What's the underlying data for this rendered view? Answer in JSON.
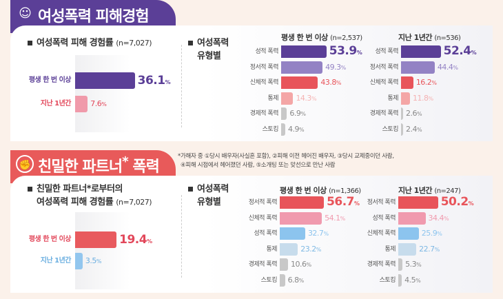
{
  "section1": {
    "title": "여성폭력 피해경험",
    "icon": "speech-bubbles-people-icon",
    "rate_title": "여성폭력 피해 경험률",
    "rate_n": "(n=7,027)",
    "type_title1": "여성폭력",
    "type_title2": "유형별"
  },
  "section2": {
    "title": "친밀한 파트너",
    "title_star": "*",
    "title_end": " 폭력",
    "icon": "raised-fist-icon",
    "rate_title1": "친밀한 파트너*로부터의",
    "rate_title2": "여성폭력 피해 경험률",
    "rate_n": "(n=7,027)",
    "type_title1": "여성폭력",
    "type_title2": "유형별",
    "note1": "*가해자 중 ①당시 배우자(사실혼 포함), ②피해 이전 헤어진 배우자, ③당시 교제중이던 사람,",
    "note2": "④피해 시점에서 헤어졌던 사람, ⑤소개팅 또는 맞선으로 만난 사람"
  },
  "chart_data": [
    {
      "type": "bar",
      "orientation": "horizontal",
      "title": "여성폭력 피해 경험률 (n=7,027)",
      "categories": [
        "평생 한 번 이상",
        "지난 1년간"
      ],
      "values": [
        36.1,
        7.6
      ],
      "unit": "%",
      "colors": [
        "#5b3f97",
        "#f09aaa"
      ],
      "label_colors": [
        "#5b3f97",
        "#e2475a"
      ]
    },
    {
      "type": "bar",
      "orientation": "horizontal",
      "title": "평생 한 번 이상",
      "n": "(n=2,537)",
      "categories": [
        "성적 폭력",
        "정서적 폭력",
        "신체적 폭력",
        "통제",
        "경제적 폭력",
        "스토킹"
      ],
      "values": [
        53.9,
        49.3,
        43.8,
        14.3,
        6.9,
        4.9
      ],
      "unit": "%",
      "colors": [
        "#5b3f97",
        "#9382c4",
        "#e8545a",
        "#f4a6a6",
        "#c8c8c8",
        "#c8c8c8"
      ]
    },
    {
      "type": "bar",
      "orientation": "horizontal",
      "title": "지난 1년간",
      "n": "(n=536)",
      "categories": [
        "성적 폭력",
        "정서적 폭력",
        "신체적 폭력",
        "통제",
        "경제적 폭력",
        "스토킹"
      ],
      "values": [
        52.4,
        44.4,
        16.2,
        11.8,
        2.6,
        2.4
      ],
      "unit": "%",
      "colors": [
        "#5b3f97",
        "#9382c4",
        "#e8545a",
        "#f4a6a6",
        "#c8c8c8",
        "#c8c8c8"
      ]
    },
    {
      "type": "bar",
      "orientation": "horizontal",
      "title": "친밀한 파트너*로부터의 여성폭력 피해 경험률 (n=7,027)",
      "categories": [
        "평생 한 번 이상",
        "지난 1년간"
      ],
      "values": [
        19.4,
        3.5
      ],
      "unit": "%",
      "colors": [
        "#e85a5e",
        "#92c6ee"
      ],
      "label_colors": [
        "#e2475a",
        "#6aaee0"
      ]
    },
    {
      "type": "bar",
      "orientation": "horizontal",
      "title": "평생 한 번 이상",
      "n": "(n=1,366)",
      "categories": [
        "정서적 폭력",
        "신체적 폭력",
        "성적 폭력",
        "통제",
        "경제적 폭력",
        "스토킹"
      ],
      "values": [
        56.7,
        54.1,
        32.7,
        23.2,
        10.6,
        6.8
      ],
      "unit": "%",
      "colors": [
        "#e8545a",
        "#f09aae",
        "#8cc4ee",
        "#c7dcec",
        "#c8c8c8",
        "#c8c8c8"
      ]
    },
    {
      "type": "bar",
      "orientation": "horizontal",
      "title": "지난 1년간",
      "n": "(n=247)",
      "categories": [
        "정서적 폭력",
        "성적 폭력",
        "신체적 폭력",
        "통제",
        "경제적 폭력",
        "스토킹"
      ],
      "values": [
        50.2,
        34.4,
        25.9,
        22.7,
        5.3,
        4.5
      ],
      "unit": "%",
      "colors": [
        "#e8545a",
        "#f09aae",
        "#8cc4ee",
        "#c7dcec",
        "#c8c8c8",
        "#c8c8c8"
      ]
    }
  ]
}
